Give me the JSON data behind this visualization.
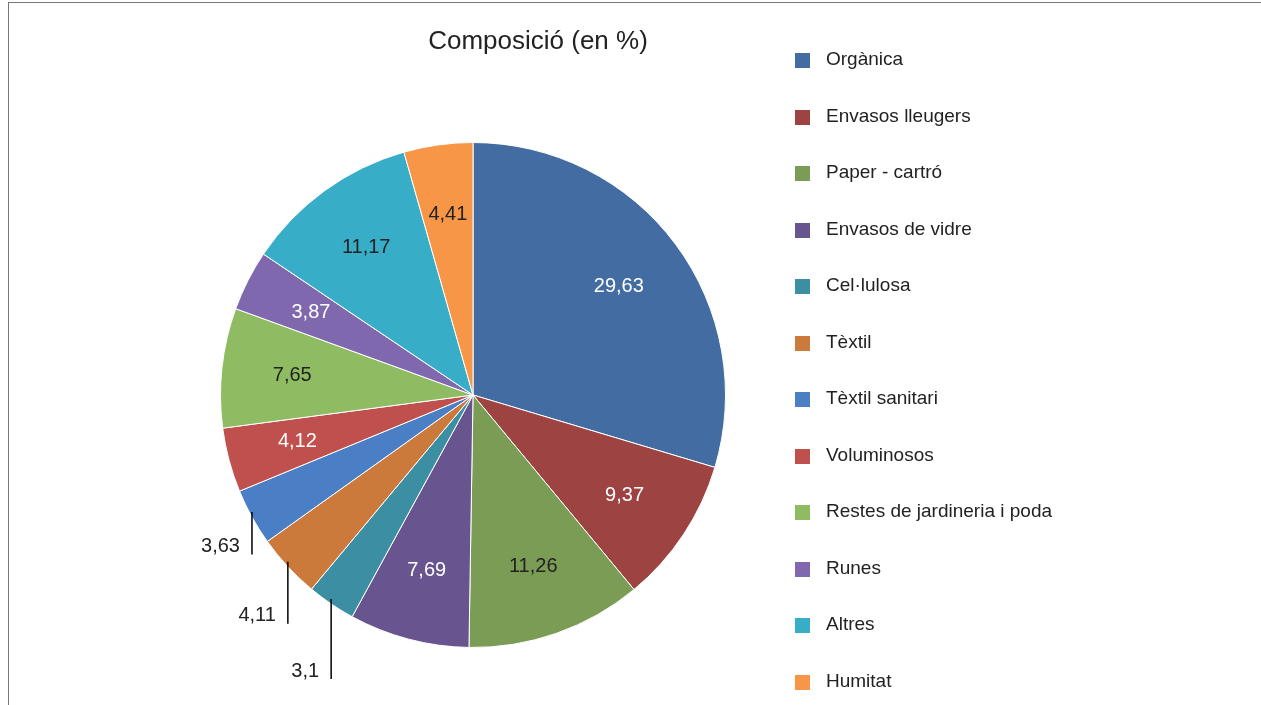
{
  "chart_data": {
    "type": "pie",
    "title": "Composició (en %)",
    "categories": [
      "Orgànica",
      "Envasos lleugers",
      "Paper - cartró",
      "Envasos de vidre",
      "Cel·lulosa",
      "Tèxtil",
      "Tèxtil sanitari",
      "Voluminosos",
      "Restes de jardineria i poda",
      "Runes",
      "Altres",
      "Humitat"
    ],
    "values": [
      29.63,
      9.37,
      11.26,
      7.69,
      3.1,
      4.11,
      3.63,
      4.12,
      7.65,
      3.87,
      11.17,
      4.41
    ],
    "value_labels": [
      "29,63",
      "9,37",
      "11,26",
      "7,69",
      "3,1",
      "4,11",
      "3,63",
      "4,12",
      "7,65",
      "3,87",
      "11,17",
      "4,41"
    ],
    "colors": [
      "#436ca2",
      "#9d4442",
      "#7a9c55",
      "#68548e",
      "#3c8fa3",
      "#cc7a3c",
      "#4a7ec5",
      "#c0504d",
      "#8fbc62",
      "#7f68ae",
      "#38adc8",
      "#f79646"
    ],
    "legend": "right"
  }
}
